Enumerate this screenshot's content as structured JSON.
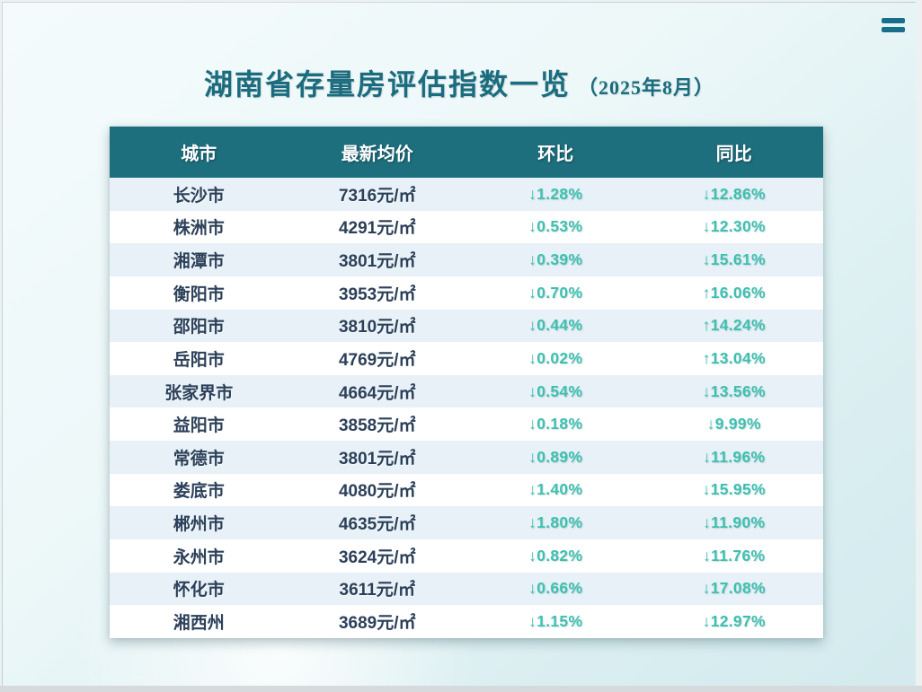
{
  "page": {
    "title": "湖南省存量房评估指数一览",
    "title_suffix": "（2025年8月）"
  },
  "menu": {
    "icon": "hamburger-menu-icon"
  },
  "colors": {
    "header_bg": "#1d6f7e",
    "title_text": "#1a6c7e",
    "row_alt_bg": "#e7f1f7",
    "row_bg": "#ffffff",
    "city_text": "#2c405a",
    "percent_text": "#3ec0b1",
    "menu_icon": "#17708a"
  },
  "table": {
    "headers": [
      "城市",
      "最新均价",
      "环比",
      "同比"
    ],
    "rows": [
      {
        "city": "长沙市",
        "price": "7316元/㎡",
        "mom": "↓1.28%",
        "yoy": "↓12.86%"
      },
      {
        "city": "株洲市",
        "price": "4291元/㎡",
        "mom": "↓0.53%",
        "yoy": "↓12.30%"
      },
      {
        "city": "湘潭市",
        "price": "3801元/㎡",
        "mom": "↓0.39%",
        "yoy": "↓15.61%"
      },
      {
        "city": "衡阳市",
        "price": "3953元/㎡",
        "mom": "↓0.70%",
        "yoy": "↑16.06%"
      },
      {
        "city": "邵阳市",
        "price": "3810元/㎡",
        "mom": "↓0.44%",
        "yoy": "↑14.24%"
      },
      {
        "city": "岳阳市",
        "price": "4769元/㎡",
        "mom": "↓0.02%",
        "yoy": "↑13.04%"
      },
      {
        "city": "张家界市",
        "price": "4664元/㎡",
        "mom": "↓0.54%",
        "yoy": "↓13.56%"
      },
      {
        "city": "益阳市",
        "price": "3858元/㎡",
        "mom": "↓0.18%",
        "yoy": "↓9.99%"
      },
      {
        "city": "常德市",
        "price": "3801元/㎡",
        "mom": "↓0.89%",
        "yoy": "↓11.96%"
      },
      {
        "city": "娄底市",
        "price": "4080元/㎡",
        "mom": "↓1.40%",
        "yoy": "↓15.95%"
      },
      {
        "city": "郴州市",
        "price": "4635元/㎡",
        "mom": "↓1.80%",
        "yoy": "↓11.90%"
      },
      {
        "city": "永州市",
        "price": "3624元/㎡",
        "mom": "↓0.82%",
        "yoy": "↓11.76%"
      },
      {
        "city": "怀化市",
        "price": "3611元/㎡",
        "mom": "↓0.66%",
        "yoy": "↓17.08%"
      },
      {
        "city": "湘西州",
        "price": "3689元/㎡",
        "mom": "↓1.15%",
        "yoy": "↓12.97%"
      }
    ]
  },
  "chart_data": {
    "type": "table",
    "title": "湖南省存量房评估指数一览（2025年8月）",
    "columns": [
      "城市",
      "最新均价(元/㎡)",
      "环比(%)",
      "同比(%)"
    ],
    "rows": [
      {
        "city": "长沙市",
        "price": 7316,
        "mom_pct": -1.28,
        "yoy_pct": -12.86
      },
      {
        "city": "株洲市",
        "price": 4291,
        "mom_pct": -0.53,
        "yoy_pct": -12.3
      },
      {
        "city": "湘潭市",
        "price": 3801,
        "mom_pct": -0.39,
        "yoy_pct": -15.61
      },
      {
        "city": "衡阳市",
        "price": 3953,
        "mom_pct": -0.7,
        "yoy_pct": 16.06
      },
      {
        "city": "邵阳市",
        "price": 3810,
        "mom_pct": -0.44,
        "yoy_pct": 14.24
      },
      {
        "city": "岳阳市",
        "price": 4769,
        "mom_pct": -0.02,
        "yoy_pct": 13.04
      },
      {
        "city": "张家界市",
        "price": 4664,
        "mom_pct": -0.54,
        "yoy_pct": -13.56
      },
      {
        "city": "益阳市",
        "price": 3858,
        "mom_pct": -0.18,
        "yoy_pct": -9.99
      },
      {
        "city": "常德市",
        "price": 3801,
        "mom_pct": -0.89,
        "yoy_pct": -11.96
      },
      {
        "city": "娄底市",
        "price": 4080,
        "mom_pct": -1.4,
        "yoy_pct": -15.95
      },
      {
        "city": "郴州市",
        "price": 4635,
        "mom_pct": -1.8,
        "yoy_pct": -11.9
      },
      {
        "city": "永州市",
        "price": 3624,
        "mom_pct": -0.82,
        "yoy_pct": -11.76
      },
      {
        "city": "怀化市",
        "price": 3611,
        "mom_pct": -0.66,
        "yoy_pct": -17.08
      },
      {
        "city": "湘西州",
        "price": 3689,
        "mom_pct": -1.15,
        "yoy_pct": -12.97
      }
    ]
  }
}
